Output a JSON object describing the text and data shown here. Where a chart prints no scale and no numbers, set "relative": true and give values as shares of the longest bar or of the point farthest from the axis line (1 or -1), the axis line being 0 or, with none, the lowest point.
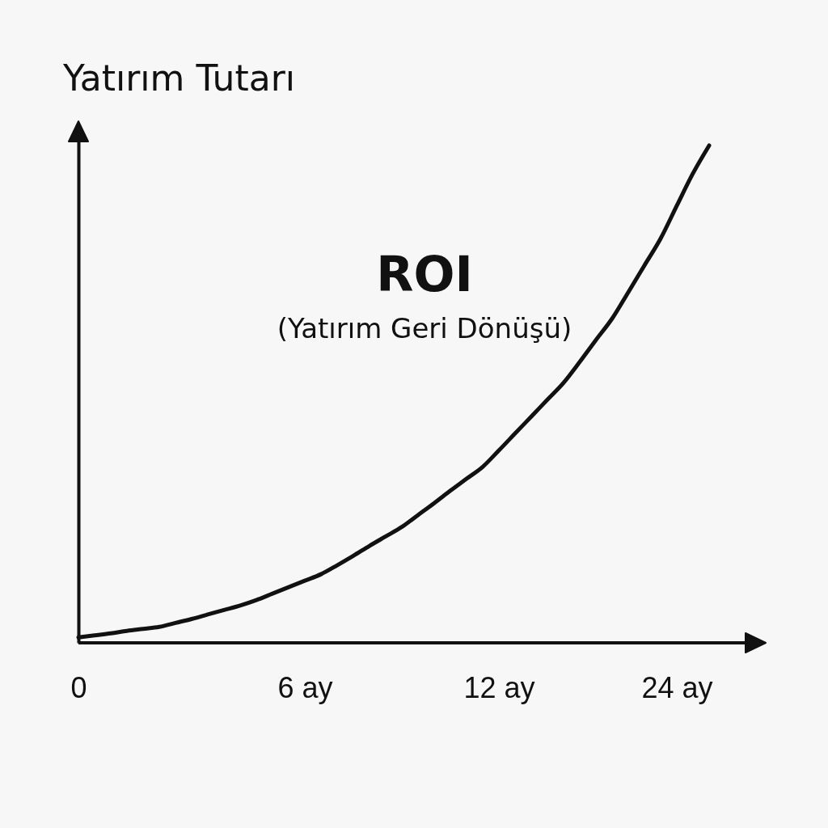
{
  "chart_data": {
    "type": "line",
    "relative": true,
    "ylabel": "Yatırım Tutarı",
    "annotations": [
      "ROI",
      "(Yatırım Geri Dönüşü)"
    ],
    "categories": [
      "0",
      null,
      null,
      null,
      null,
      null,
      null,
      null,
      null,
      null,
      null,
      null,
      null,
      null,
      "6 ay",
      null,
      null,
      null,
      null,
      null,
      null,
      null,
      null,
      null,
      null,
      null,
      "12 ay",
      null,
      null,
      null,
      null,
      null,
      null,
      null,
      null,
      null,
      null,
      "24 ay",
      null,
      null
    ],
    "series": [
      {
        "color": "#111111",
        "values": [
          0.011,
          0.015,
          0.019,
          0.024,
          0.028,
          0.032,
          0.04,
          0.048,
          0.057,
          0.066,
          0.075,
          0.086,
          0.099,
          0.112,
          0.125,
          0.138,
          0.156,
          0.175,
          0.195,
          0.214,
          0.233,
          0.257,
          0.281,
          0.306,
          0.33,
          0.354,
          0.387,
          0.421,
          0.455,
          0.489,
          0.523,
          0.565,
          0.609,
          0.652,
          0.705,
          0.759,
          0.813,
          0.879,
          0.944,
          1
        ]
      }
    ],
    "tick_labels": "x",
    "line_style": "solid"
  }
}
